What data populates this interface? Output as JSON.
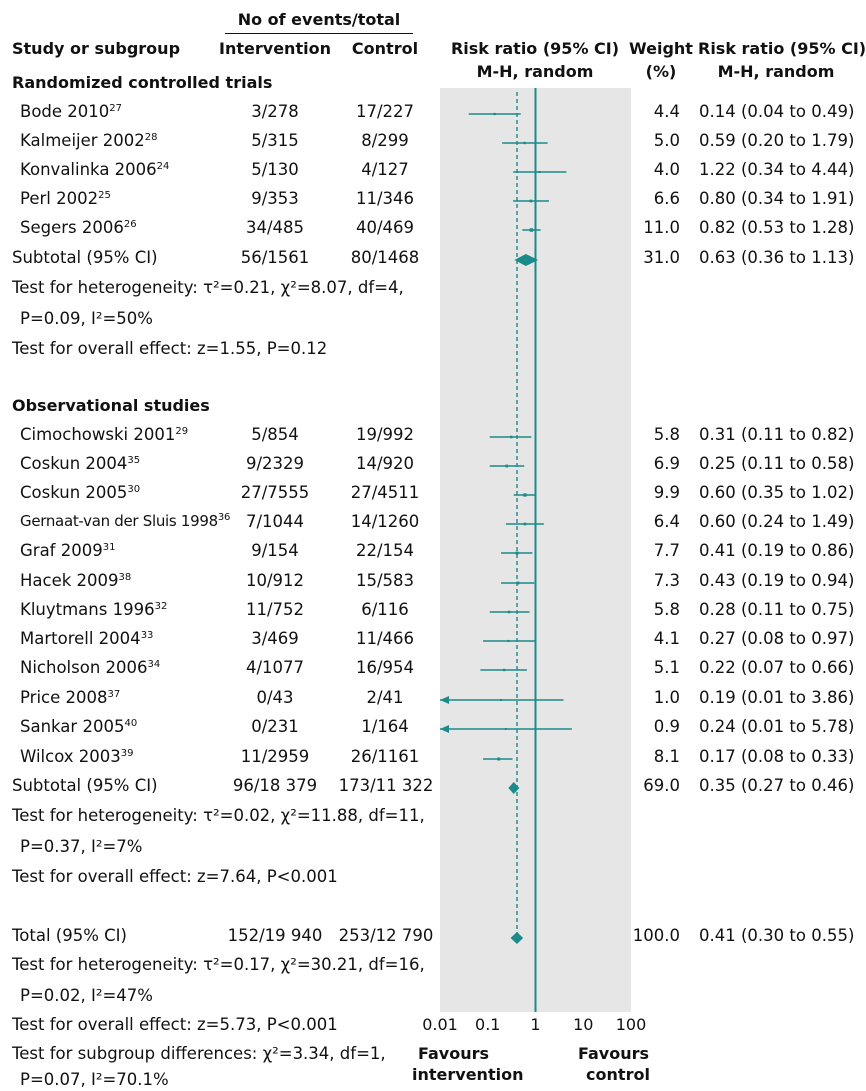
{
  "header": {
    "events_title": "No of events/total",
    "study_col": "Study or subgroup",
    "intervention_col": "Intervention",
    "control_col": "Control",
    "rr_col_1": "Risk ratio (95% CI)",
    "rr_col_2": "M-H, random",
    "weight_col_1": "Weight",
    "weight_col_2": "(%)",
    "rrv_col_1": "Risk ratio (95% CI)",
    "rrv_col_2": "M-H, random"
  },
  "groups": [
    {
      "title": "Randomized controlled trials",
      "studies": [
        {
          "name": "Bode 2010",
          "ref": "27",
          "intervention": "3/278",
          "control": "17/227",
          "weight": "4.4",
          "rr_text": "0.14 (0.04 to 0.49)"
        },
        {
          "name": "Kalmeijer 2002",
          "ref": "28",
          "intervention": "5/315",
          "control": "8/299",
          "weight": "5.0",
          "rr_text": "0.59 (0.20 to 1.79)"
        },
        {
          "name": "Konvalinka 2006",
          "ref": "24",
          "intervention": "5/130",
          "control": "4/127",
          "weight": "4.0",
          "rr_text": "1.22 (0.34 to 4.44)"
        },
        {
          "name": "Perl 2002",
          "ref": "25",
          "intervention": "9/353",
          "control": "11/346",
          "weight": "6.6",
          "rr_text": "0.80 (0.34 to 1.91)"
        },
        {
          "name": "Segers 2006",
          "ref": "26",
          "intervention": "34/485",
          "control": "40/469",
          "weight": "11.0",
          "rr_text": "0.82 (0.53 to 1.28)"
        }
      ],
      "subtotal": {
        "label": "Subtotal (95% CI)",
        "intervention": "56/1561",
        "control": "80/1468",
        "weight": "31.0",
        "rr_text": "0.63 (0.36 to 1.13)"
      },
      "het_1": "Test for heterogeneity: τ²=0.21, χ²=8.07, df=4,",
      "het_2": "P=0.09, I²=50%",
      "overall": "Test for overall effect: z=1.55, P=0.12"
    },
    {
      "title": "Observational studies",
      "studies": [
        {
          "name": "Cimochowski 2001",
          "ref": "29",
          "intervention": "5/854",
          "control": "19/992",
          "weight": "5.8",
          "rr_text": "0.31 (0.11 to 0.82)"
        },
        {
          "name": "Coskun 2004",
          "ref": "35",
          "intervention": "9/2329",
          "control": "14/920",
          "weight": "6.9",
          "rr_text": "0.25 (0.11 to 0.58)"
        },
        {
          "name": "Coskun 2005",
          "ref": "30",
          "intervention": "27/7555",
          "control": "27/4511",
          "weight": "9.9",
          "rr_text": "0.60 (0.35 to 1.02)"
        },
        {
          "name": "Gernaat-van der Sluis 1998",
          "ref": "36",
          "intervention": "7/1044",
          "control": "14/1260",
          "weight": "6.4",
          "rr_text": "0.60 (0.24 to 1.49)"
        },
        {
          "name": "Graf 2009",
          "ref": "31",
          "intervention": "9/154",
          "control": "22/154",
          "weight": "7.7",
          "rr_text": "0.41 (0.19 to 0.86)"
        },
        {
          "name": "Hacek 2009",
          "ref": "38",
          "intervention": "10/912",
          "control": "15/583",
          "weight": "7.3",
          "rr_text": "0.43 (0.19 to 0.94)"
        },
        {
          "name": "Kluytmans 1996",
          "ref": "32",
          "intervention": "11/752",
          "control": "6/116",
          "weight": "5.8",
          "rr_text": "0.28 (0.11 to 0.75)"
        },
        {
          "name": "Martorell 2004",
          "ref": "33",
          "intervention": "3/469",
          "control": "11/466",
          "weight": "4.1",
          "rr_text": "0.27 (0.08 to 0.97)"
        },
        {
          "name": "Nicholson 2006",
          "ref": "34",
          "intervention": "4/1077",
          "control": "16/954",
          "weight": "5.1",
          "rr_text": "0.22 (0.07 to 0.66)"
        },
        {
          "name": "Price 2008",
          "ref": "37",
          "intervention": "0/43",
          "control": "2/41",
          "weight": "1.0",
          "rr_text": "0.19 (0.01 to 3.86)"
        },
        {
          "name": "Sankar 2005",
          "ref": "40",
          "intervention": "0/231",
          "control": "1/164",
          "weight": "0.9",
          "rr_text": "0.24 (0.01 to 5.78)"
        },
        {
          "name": "Wilcox 2003",
          "ref": "39",
          "intervention": "11/2959",
          "control": "26/1161",
          "weight": "8.1",
          "rr_text": "0.17 (0.08 to 0.33)"
        }
      ],
      "subtotal": {
        "label": "Subtotal (95% CI)",
        "intervention": "96/18 379",
        "control": "173/11 322",
        "weight": "69.0",
        "rr_text": "0.35 (0.27 to 0.46)"
      },
      "het_1": "Test for heterogeneity: τ²=0.02, χ²=11.88, df=11,",
      "het_2": "P=0.37, I²=7%",
      "overall": "Test for overall effect: z=7.64, P<0.001"
    }
  ],
  "total": {
    "label": "Total (95% CI)",
    "intervention": "152/19 940",
    "control": "253/12 790",
    "weight": "100.0",
    "rr_text": "0.41 (0.30 to 0.55)",
    "het_1": "Test for heterogeneity: τ²=0.17, χ²=30.21, df=16,",
    "het_2": "P=0.02, I²=47%",
    "overall": "Test for overall effect: z=5.73, P<0.001",
    "subgroup_1": "Test for subgroup differences: χ²=3.34, df=1,",
    "subgroup_2": "P=0.07, I²=70.1%"
  },
  "axis": {
    "ticks": [
      {
        "value": 0.01,
        "label": "0.01"
      },
      {
        "value": 0.1,
        "label": "0.1"
      },
      {
        "value": 1,
        "label": "1"
      },
      {
        "value": 10,
        "label": "10"
      },
      {
        "value": 100,
        "label": "100"
      }
    ],
    "favours_left_1": "Favours",
    "favours_left_2": "intervention",
    "favours_right_1": "Favours",
    "favours_right_2": "control"
  },
  "colors": {
    "mark": "#1b8a8a",
    "panel": "#e6e6e6"
  },
  "chart_data": {
    "type": "scatter",
    "scale": "log",
    "xlim": [
      0.01,
      100
    ],
    "reference_line": 1,
    "pooled_line": 0.41,
    "series": [
      {
        "name": "Randomized controlled trials",
        "points": [
          {
            "study": "Bode 2010",
            "rr": 0.14,
            "lo": 0.04,
            "hi": 0.49,
            "weight": 4.4
          },
          {
            "study": "Kalmeijer 2002",
            "rr": 0.59,
            "lo": 0.2,
            "hi": 1.79,
            "weight": 5.0
          },
          {
            "study": "Konvalinka 2006",
            "rr": 1.22,
            "lo": 0.34,
            "hi": 4.44,
            "weight": 4.0
          },
          {
            "study": "Perl 2002",
            "rr": 0.8,
            "lo": 0.34,
            "hi": 1.91,
            "weight": 6.6
          },
          {
            "study": "Segers 2006",
            "rr": 0.82,
            "lo": 0.53,
            "hi": 1.28,
            "weight": 11.0
          }
        ],
        "subtotal": {
          "rr": 0.63,
          "lo": 0.36,
          "hi": 1.13
        }
      },
      {
        "name": "Observational studies",
        "points": [
          {
            "study": "Cimochowski 2001",
            "rr": 0.31,
            "lo": 0.11,
            "hi": 0.82,
            "weight": 5.8
          },
          {
            "study": "Coskun 2004",
            "rr": 0.25,
            "lo": 0.11,
            "hi": 0.58,
            "weight": 6.9
          },
          {
            "study": "Coskun 2005",
            "rr": 0.6,
            "lo": 0.35,
            "hi": 1.02,
            "weight": 9.9
          },
          {
            "study": "Gernaat-van der Sluis 1998",
            "rr": 0.6,
            "lo": 0.24,
            "hi": 1.49,
            "weight": 6.4
          },
          {
            "study": "Graf 2009",
            "rr": 0.41,
            "lo": 0.19,
            "hi": 0.86,
            "weight": 7.7
          },
          {
            "study": "Hacek 2009",
            "rr": 0.43,
            "lo": 0.19,
            "hi": 0.94,
            "weight": 7.3
          },
          {
            "study": "Kluytmans 1996",
            "rr": 0.28,
            "lo": 0.11,
            "hi": 0.75,
            "weight": 5.8
          },
          {
            "study": "Martorell 2004",
            "rr": 0.27,
            "lo": 0.08,
            "hi": 0.97,
            "weight": 4.1
          },
          {
            "study": "Nicholson 2006",
            "rr": 0.22,
            "lo": 0.07,
            "hi": 0.66,
            "weight": 5.1
          },
          {
            "study": "Price 2008",
            "rr": 0.19,
            "lo": 0.01,
            "hi": 3.86,
            "weight": 1.0
          },
          {
            "study": "Sankar 2005",
            "rr": 0.24,
            "lo": 0.01,
            "hi": 5.78,
            "weight": 0.9
          },
          {
            "study": "Wilcox 2003",
            "rr": 0.17,
            "lo": 0.08,
            "hi": 0.33,
            "weight": 8.1
          }
        ],
        "subtotal": {
          "rr": 0.35,
          "lo": 0.27,
          "hi": 0.46
        }
      }
    ],
    "total": {
      "rr": 0.41,
      "lo": 0.3,
      "hi": 0.55
    }
  }
}
